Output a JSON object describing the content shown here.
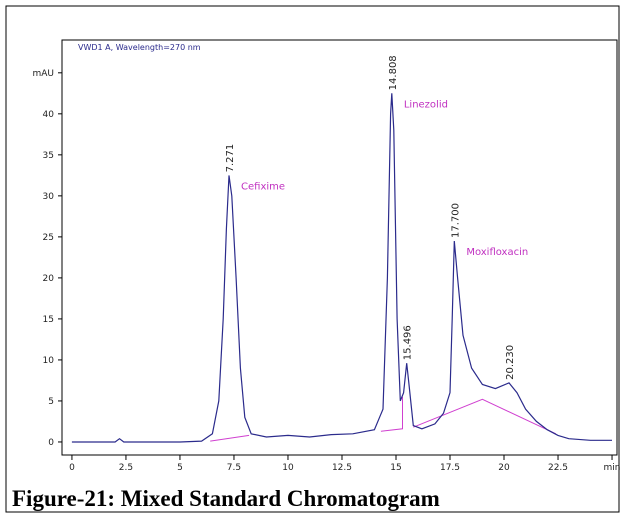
{
  "chart_data": {
    "type": "line",
    "header": "VWD1 A, Wavelength=270 nm",
    "caption": "Figure-21: Mixed Standard Chromatogram",
    "series": [
      {
        "color": "#2b2b8c",
        "x": [
          0,
          2,
          2.2,
          2.4,
          5,
          6,
          6.5,
          6.8,
          7.0,
          7.15,
          7.271,
          7.4,
          7.6,
          7.8,
          8.0,
          8.3,
          9,
          10,
          11,
          12,
          13,
          14,
          14.4,
          14.6,
          14.75,
          14.808,
          14.9,
          15.05,
          15.2,
          15.35,
          15.496,
          15.6,
          15.8,
          16.2,
          16.8,
          17.2,
          17.5,
          17.6,
          17.7,
          17.85,
          18.1,
          18.5,
          19,
          19.6,
          20.23,
          20.6,
          21,
          21.5,
          22,
          22.5,
          23,
          24,
          25
        ],
        "values": [
          0,
          0,
          0.4,
          0,
          0,
          0.1,
          1,
          5,
          15,
          26,
          32.5,
          30,
          20,
          9,
          3,
          1,
          0.6,
          0.8,
          0.6,
          0.9,
          1.0,
          1.5,
          4,
          20,
          40,
          42.5,
          38,
          15,
          5,
          6,
          9.6,
          7,
          2,
          1.6,
          2.2,
          3.5,
          6,
          15,
          24.5,
          20,
          13,
          9,
          7,
          6.5,
          7.2,
          6,
          4,
          2.5,
          1.5,
          0.8,
          0.4,
          0.2,
          0.2
        ]
      }
    ],
    "baselines": [
      {
        "color": "#d040d0",
        "x": [
          6.4,
          8.2
        ],
        "values": [
          0.1,
          0.8
        ]
      },
      {
        "color": "#d040d0",
        "x": [
          14.3,
          15.3,
          15.3
        ],
        "values": [
          1.3,
          1.6,
          5.5
        ]
      },
      {
        "color": "#d040d0",
        "x": [
          15.8,
          19.0,
          22.4
        ],
        "values": [
          1.8,
          5.2,
          1.0
        ]
      }
    ],
    "peaks": [
      {
        "time": 7.271,
        "height": 32.5,
        "label": "7.271",
        "compound": "Cefixime"
      },
      {
        "time": 14.808,
        "height": 42.5,
        "label": "14.808",
        "compound": "Linezolid"
      },
      {
        "time": 15.496,
        "height": 9.6,
        "label": "15.496"
      },
      {
        "time": 17.7,
        "height": 24.5,
        "label": "17.700",
        "compound": "Moxifloxacin"
      },
      {
        "time": 20.23,
        "height": 7.2,
        "label": "20.230"
      }
    ],
    "xlim": [
      -0.46,
      25.23
    ],
    "ylim": [
      -1.59,
      49.0
    ],
    "xticks": [
      0,
      2.5,
      5,
      7.5,
      10,
      12.5,
      15,
      17.5,
      20,
      22.5,
      {
        "value": 25,
        "label": "min"
      }
    ],
    "yticks": [
      0,
      5,
      10,
      15,
      20,
      25,
      30,
      35,
      40,
      {
        "value": 45,
        "label": "mAU"
      }
    ]
  }
}
